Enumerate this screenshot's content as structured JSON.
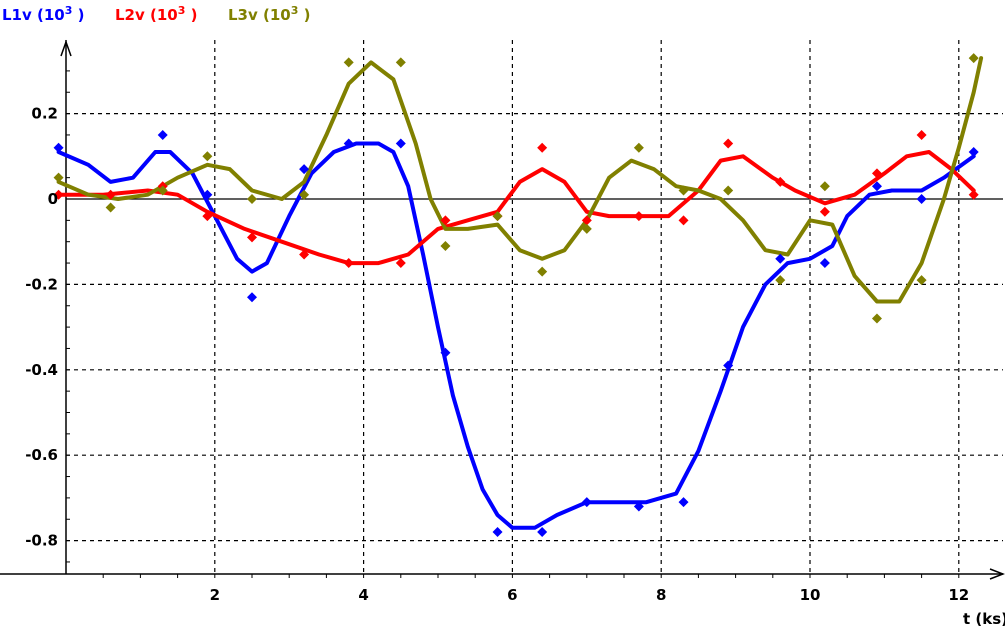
{
  "chart_data": {
    "type": "scatter",
    "title": "",
    "xlabel": "t (ks)",
    "ylabel": "",
    "xlim": [
      -0.2,
      12.5
    ],
    "ylim": [
      -0.88,
      0.34
    ],
    "x_ticks": [
      2,
      4,
      6,
      8,
      10,
      12
    ],
    "x_tick_labels": [
      "2",
      "4",
      "6",
      "8",
      "10",
      "12"
    ],
    "y_ticks": [
      0.2,
      0,
      -0.2,
      -0.4,
      -0.6,
      -0.8
    ],
    "y_tick_labels": [
      "0.2",
      "0",
      "-0.2",
      "-0.4",
      "-0.6",
      "-0.8"
    ],
    "grid": true,
    "legend_position": "top-left",
    "series": [
      {
        "name": "L1v (10³ )",
        "legend_parts": [
          "L1v (10",
          "3",
          " )"
        ],
        "color": "#0000ff",
        "points": [
          [
            -0.1,
            0.12
          ],
          [
            1.3,
            0.15
          ],
          [
            1.9,
            0.01
          ],
          [
            2.5,
            -0.23
          ],
          [
            3.2,
            0.07
          ],
          [
            3.8,
            0.13
          ],
          [
            4.5,
            0.13
          ],
          [
            5.1,
            -0.36
          ],
          [
            5.8,
            -0.78
          ],
          [
            6.4,
            -0.78
          ],
          [
            7.0,
            -0.71
          ],
          [
            7.7,
            -0.72
          ],
          [
            8.3,
            -0.71
          ],
          [
            8.9,
            -0.39
          ],
          [
            9.6,
            -0.14
          ],
          [
            10.2,
            -0.15
          ],
          [
            10.9,
            0.03
          ],
          [
            11.5,
            0.0
          ],
          [
            12.2,
            0.11
          ]
        ],
        "curve": [
          [
            -0.1,
            0.11
          ],
          [
            0.3,
            0.08
          ],
          [
            0.6,
            0.04
          ],
          [
            0.9,
            0.05
          ],
          [
            1.2,
            0.11
          ],
          [
            1.4,
            0.11
          ],
          [
            1.7,
            0.06
          ],
          [
            2.0,
            -0.04
          ],
          [
            2.3,
            -0.14
          ],
          [
            2.5,
            -0.17
          ],
          [
            2.7,
            -0.15
          ],
          [
            3.0,
            -0.04
          ],
          [
            3.3,
            0.06
          ],
          [
            3.6,
            0.11
          ],
          [
            3.9,
            0.13
          ],
          [
            4.2,
            0.13
          ],
          [
            4.4,
            0.11
          ],
          [
            4.6,
            0.03
          ],
          [
            4.8,
            -0.13
          ],
          [
            5.0,
            -0.3
          ],
          [
            5.2,
            -0.46
          ],
          [
            5.4,
            -0.58
          ],
          [
            5.6,
            -0.68
          ],
          [
            5.8,
            -0.74
          ],
          [
            6.0,
            -0.77
          ],
          [
            6.3,
            -0.77
          ],
          [
            6.6,
            -0.74
          ],
          [
            7.0,
            -0.71
          ],
          [
            7.4,
            -0.71
          ],
          [
            7.8,
            -0.71
          ],
          [
            8.2,
            -0.69
          ],
          [
            8.5,
            -0.59
          ],
          [
            8.8,
            -0.45
          ],
          [
            9.1,
            -0.3
          ],
          [
            9.4,
            -0.2
          ],
          [
            9.7,
            -0.15
          ],
          [
            10.0,
            -0.14
          ],
          [
            10.3,
            -0.11
          ],
          [
            10.5,
            -0.04
          ],
          [
            10.8,
            0.01
          ],
          [
            11.1,
            0.02
          ],
          [
            11.5,
            0.02
          ],
          [
            11.8,
            0.05
          ],
          [
            12.2,
            0.1
          ]
        ]
      },
      {
        "name": "L2v (10³ )",
        "legend_parts": [
          "L2v (10",
          "3",
          " )"
        ],
        "color": "#ff0000",
        "points": [
          [
            -0.1,
            0.01
          ],
          [
            0.6,
            0.01
          ],
          [
            1.3,
            0.03
          ],
          [
            1.9,
            -0.04
          ],
          [
            2.5,
            -0.09
          ],
          [
            3.2,
            -0.13
          ],
          [
            3.8,
            -0.15
          ],
          [
            4.5,
            -0.15
          ],
          [
            5.1,
            -0.05
          ],
          [
            5.8,
            -0.04
          ],
          [
            6.4,
            0.12
          ],
          [
            7.0,
            -0.05
          ],
          [
            7.7,
            -0.04
          ],
          [
            8.3,
            -0.05
          ],
          [
            8.9,
            0.13
          ],
          [
            9.6,
            0.04
          ],
          [
            10.2,
            -0.03
          ],
          [
            10.9,
            0.06
          ],
          [
            11.5,
            0.15
          ],
          [
            12.2,
            0.01
          ]
        ],
        "curve": [
          [
            -0.1,
            0.01
          ],
          [
            0.5,
            0.01
          ],
          [
            1.1,
            0.02
          ],
          [
            1.5,
            0.01
          ],
          [
            1.9,
            -0.03
          ],
          [
            2.4,
            -0.07
          ],
          [
            2.9,
            -0.1
          ],
          [
            3.4,
            -0.13
          ],
          [
            3.8,
            -0.15
          ],
          [
            4.2,
            -0.15
          ],
          [
            4.6,
            -0.13
          ],
          [
            5.0,
            -0.07
          ],
          [
            5.4,
            -0.05
          ],
          [
            5.8,
            -0.03
          ],
          [
            6.1,
            0.04
          ],
          [
            6.4,
            0.07
          ],
          [
            6.7,
            0.04
          ],
          [
            7.0,
            -0.03
          ],
          [
            7.3,
            -0.04
          ],
          [
            7.7,
            -0.04
          ],
          [
            8.1,
            -0.04
          ],
          [
            8.5,
            0.02
          ],
          [
            8.8,
            0.09
          ],
          [
            9.1,
            0.1
          ],
          [
            9.5,
            0.05
          ],
          [
            9.8,
            0.02
          ],
          [
            10.2,
            -0.01
          ],
          [
            10.6,
            0.01
          ],
          [
            11.0,
            0.06
          ],
          [
            11.3,
            0.1
          ],
          [
            11.6,
            0.11
          ],
          [
            11.9,
            0.07
          ],
          [
            12.2,
            0.02
          ]
        ]
      },
      {
        "name": "L3v (10³ )",
        "legend_parts": [
          "L3v (10",
          "3",
          " )"
        ],
        "color": "#808000",
        "points": [
          [
            -0.1,
            0.05
          ],
          [
            0.6,
            -0.02
          ],
          [
            1.3,
            0.02
          ],
          [
            1.9,
            0.1
          ],
          [
            2.5,
            0.0
          ],
          [
            3.2,
            0.01
          ],
          [
            3.8,
            0.32
          ],
          [
            4.5,
            0.32
          ],
          [
            5.1,
            -0.11
          ],
          [
            5.8,
            -0.04
          ],
          [
            6.4,
            -0.17
          ],
          [
            7.0,
            -0.07
          ],
          [
            7.7,
            0.12
          ],
          [
            8.3,
            0.02
          ],
          [
            8.9,
            0.02
          ],
          [
            9.6,
            -0.19
          ],
          [
            10.2,
            0.03
          ],
          [
            10.9,
            -0.28
          ],
          [
            11.5,
            -0.19
          ],
          [
            12.2,
            0.33
          ]
        ],
        "curve": [
          [
            -0.1,
            0.04
          ],
          [
            0.3,
            0.01
          ],
          [
            0.7,
            0.0
          ],
          [
            1.1,
            0.01
          ],
          [
            1.5,
            0.05
          ],
          [
            1.9,
            0.08
          ],
          [
            2.2,
            0.07
          ],
          [
            2.5,
            0.02
          ],
          [
            2.9,
            0.0
          ],
          [
            3.2,
            0.04
          ],
          [
            3.5,
            0.15
          ],
          [
            3.8,
            0.27
          ],
          [
            4.1,
            0.32
          ],
          [
            4.4,
            0.28
          ],
          [
            4.7,
            0.13
          ],
          [
            4.9,
            0.0
          ],
          [
            5.1,
            -0.07
          ],
          [
            5.4,
            -0.07
          ],
          [
            5.8,
            -0.06
          ],
          [
            6.1,
            -0.12
          ],
          [
            6.4,
            -0.14
          ],
          [
            6.7,
            -0.12
          ],
          [
            7.0,
            -0.05
          ],
          [
            7.3,
            0.05
          ],
          [
            7.6,
            0.09
          ],
          [
            7.9,
            0.07
          ],
          [
            8.2,
            0.03
          ],
          [
            8.5,
            0.02
          ],
          [
            8.8,
            0.0
          ],
          [
            9.1,
            -0.05
          ],
          [
            9.4,
            -0.12
          ],
          [
            9.7,
            -0.13
          ],
          [
            10.0,
            -0.05
          ],
          [
            10.3,
            -0.06
          ],
          [
            10.6,
            -0.18
          ],
          [
            10.9,
            -0.24
          ],
          [
            11.2,
            -0.24
          ],
          [
            11.5,
            -0.15
          ],
          [
            11.8,
            0.0
          ],
          [
            12.0,
            0.12
          ],
          [
            12.2,
            0.25
          ],
          [
            12.3,
            0.33
          ]
        ]
      }
    ]
  }
}
